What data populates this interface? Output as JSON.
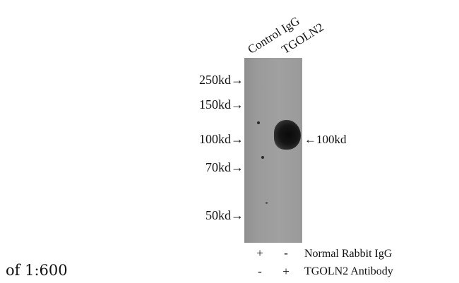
{
  "lanes": {
    "headers": [
      "Control IgG",
      "TGOLN2"
    ]
  },
  "markers": {
    "kd250": "250kd→",
    "kd150": "150kd→",
    "kd100": "100kd→",
    "kd70": "70kd→",
    "kd50": "50kd→"
  },
  "band_label": "←100kd",
  "conditions": [
    {
      "label": "Normal Rabbit IgG",
      "lane1": "+",
      "lane2": "-"
    },
    {
      "label": "TGOLN2 Antibody",
      "lane1": "-",
      "lane2": "+"
    }
  ],
  "caption": "of 1:600",
  "colors": {
    "background": "#ffffff",
    "membrane": "#9a9a9a",
    "band": "#111111",
    "text": "#111111"
  }
}
